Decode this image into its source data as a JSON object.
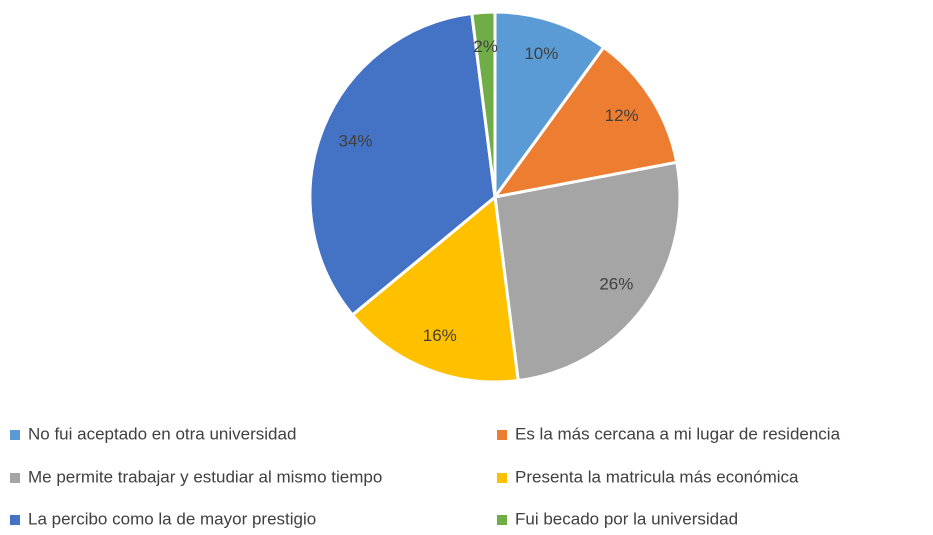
{
  "chart_data": {
    "type": "pie",
    "categories": [
      "No fui aceptado en otra universidad",
      "Es la más cercana a mi lugar de residencia",
      "Me permite trabajar y estudiar al mismo tiempo",
      "Presenta la matricula más económica",
      "La percibo como la de mayor prestigio",
      "Fui becado por la universidad"
    ],
    "values": [
      10,
      12,
      26,
      16,
      34,
      2
    ],
    "value_labels": [
      "10%",
      "12%",
      "26%",
      "16%",
      "34%",
      "2%"
    ],
    "colors": [
      "#5b9bd5",
      "#ed7d31",
      "#a5a5a5",
      "#ffc000",
      "#4472c4",
      "#70ad47"
    ],
    "legend": "bottom"
  }
}
